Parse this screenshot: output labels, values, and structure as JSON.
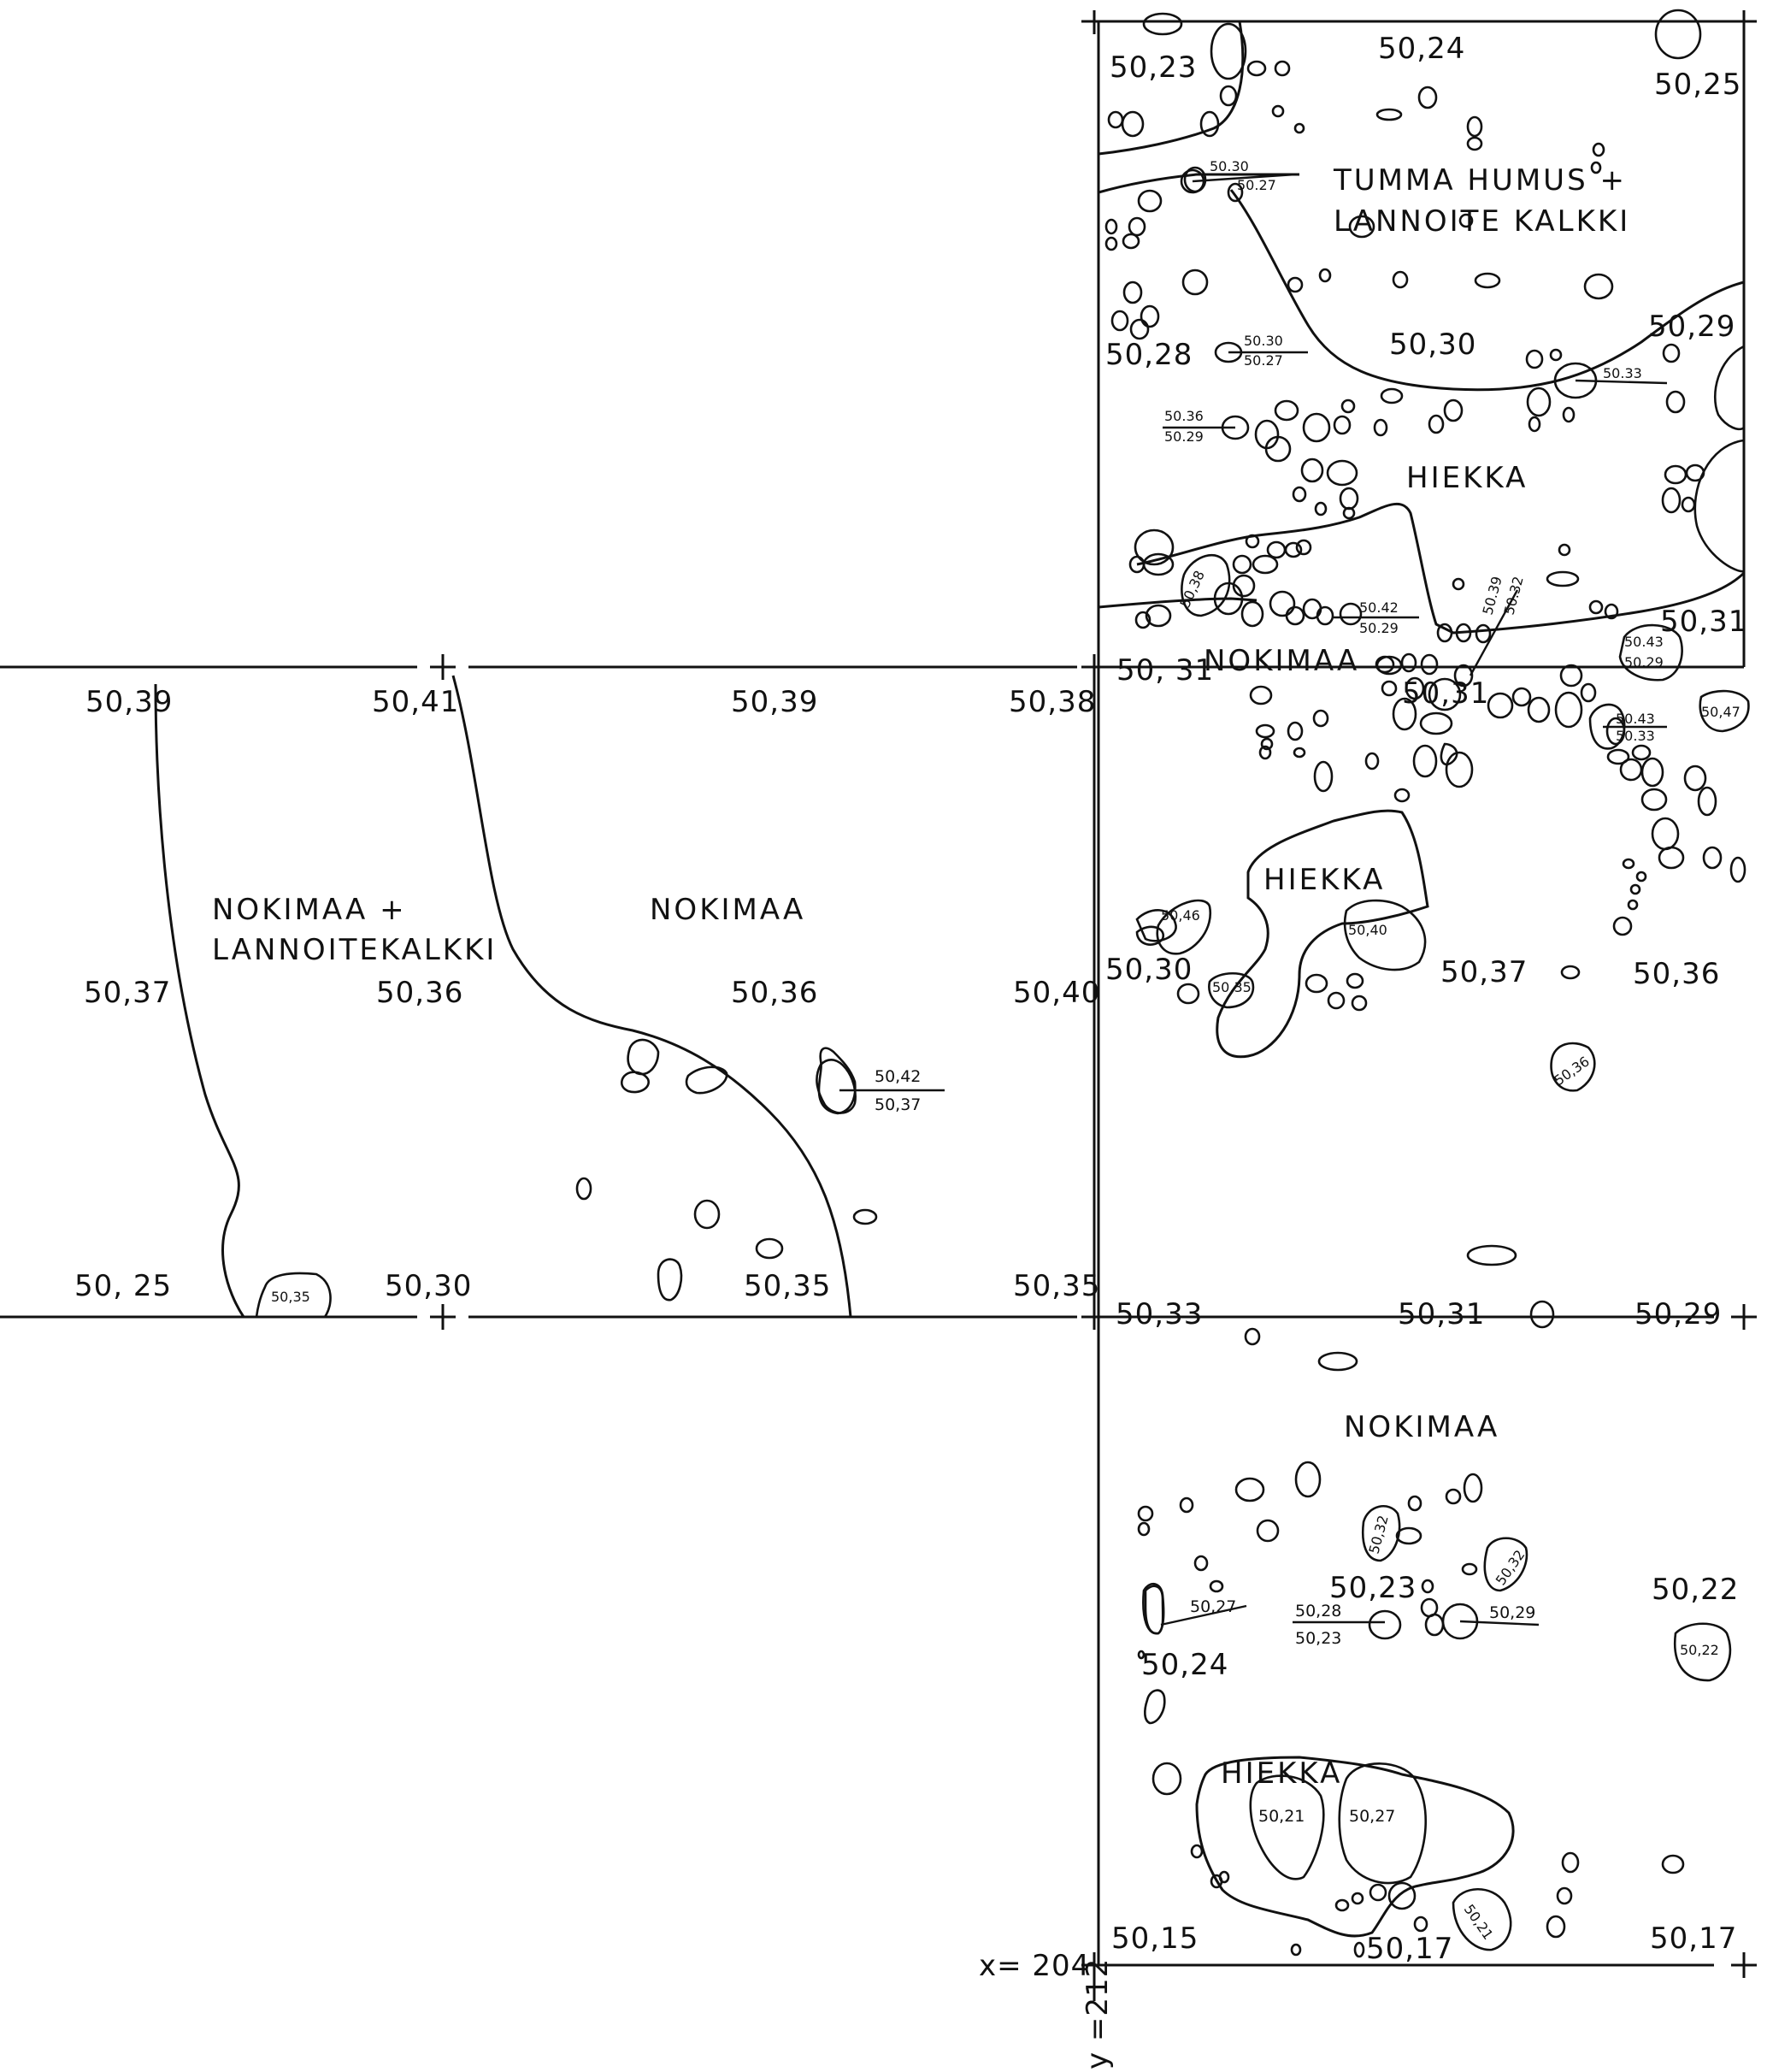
{
  "grid": {
    "x_label": "x= 204",
    "y_label": "y =212"
  },
  "areas": {
    "a_nokimaa_lannoite_l1": "NOKIMAA +",
    "a_nokimaa_lannoite_l2": "LANNOITEKALKKI",
    "a_nokimaa_mid": "NOKIMAA",
    "a_tumma_l1": "TUMMA HUMUS +",
    "a_tumma_l2": "LANNOITE KALKKI",
    "a_hiekka_top": "HIEKKA",
    "a_nokimaa_top": "NOKIMAA",
    "a_hiekka_mid": "HIEKKA",
    "a_nokimaa_bottom": "NOKIMAA",
    "a_hiekka_bottom": "HIEKKA"
  },
  "elevations": {
    "e_50_23": "50,23",
    "e_50_24_top": "50,24",
    "e_50_25_top": "50,25",
    "e_50_28": "50,28",
    "e_50_30_top": "50,30",
    "e_50_29_top": "50,29",
    "e_50_31_right": "50,31",
    "e_50_31_corner": "50, 31",
    "e_50_31_mid": "50,31",
    "e_50_39_a": "50,39",
    "e_50_41": "50,41",
    "e_50_39_b": "50,39",
    "e_50_38": "50,38",
    "e_50_37_l": "50,37",
    "e_50_36_a": "50,36",
    "e_50_36_b": "50,36",
    "e_50_40": "50,40",
    "e_50_30_mid": "50,30",
    "e_50_37_r": "50,37",
    "e_50_36_r": "50,36",
    "e_50_25_bl": "50, 25",
    "e_50_30_b": "50,30",
    "e_50_35_a": "50,35",
    "e_50_35_b": "50,35",
    "e_50_33": "50,33",
    "e_50_31_b": "50,31",
    "e_50_29_b": "50,29",
    "e_50_23_b": "50,23",
    "e_50_22": "50,22",
    "e_50_24_b": "50,24",
    "e_50_15": "50,15",
    "e_50_17_mid": "50,17",
    "e_50_17_r": "50,17"
  },
  "stone_readings": {
    "s1_top": "50.30",
    "s1_bot": "50.27",
    "s2_top": "50.30",
    "s2_bot": "50.27",
    "s3_top": "50.36",
    "s3_bot": "50.29",
    "s4": "50.33",
    "s5": "50,38",
    "s6_top": "50.42",
    "s6_bot": "50.29",
    "s7_top": "50.39",
    "s7_bot": "50.32",
    "s8_top": "50.43",
    "s8_bot": "50.29",
    "s9_top": "50.43",
    "s9_bot": "50.33",
    "s10": "50,47",
    "s11": "50,46",
    "s12": "50,40",
    "s13": "50.35",
    "s14": "50,36",
    "s15_top": "50,42",
    "s15_bot": "50,37",
    "s16": "50,35",
    "s17": "50,32",
    "s18": "50,32",
    "s19": "50,27",
    "s20_top": "50,28",
    "s20_bot": "50,23",
    "s21": "50,29",
    "s22": "50,22",
    "s23": "50,21",
    "s24": "50,27",
    "s25": "50,21"
  }
}
